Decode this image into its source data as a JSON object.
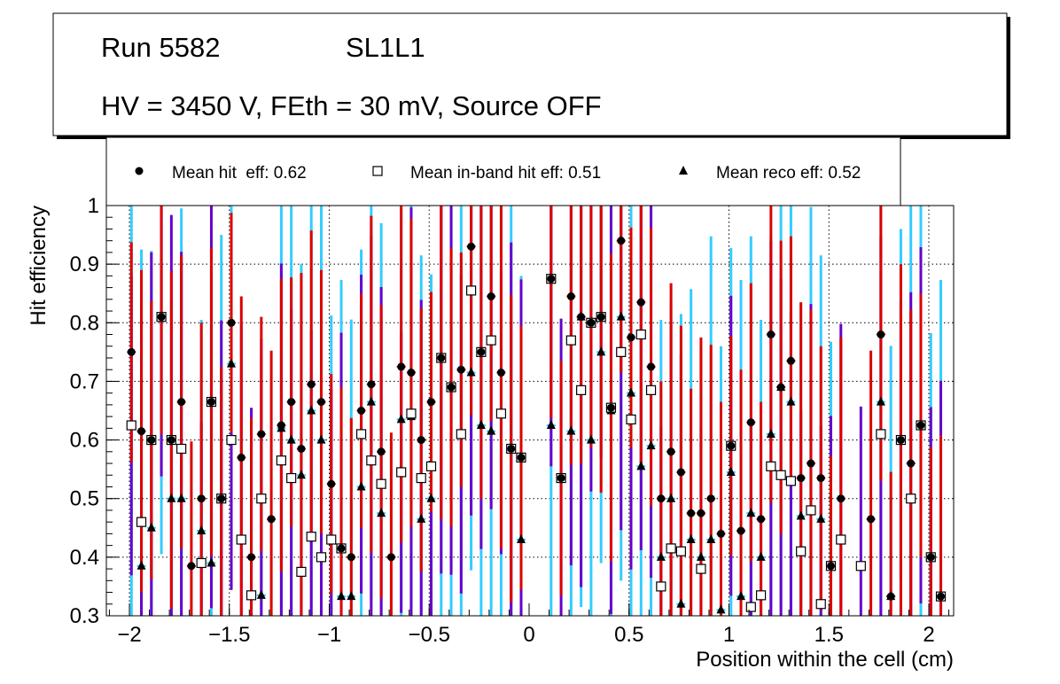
{
  "header": {
    "run": "Run 5582",
    "layer": "SL1L1",
    "conditions": "HV = 3450 V, FEth = 30 mV, Source OFF"
  },
  "chart_data": {
    "type": "scatter",
    "title": "",
    "xlabel": "Position within the cell (cm)",
    "ylabel": "Hit efficiency",
    "xlim": [
      -2.12,
      2.12
    ],
    "ylim": [
      0.3,
      1.0
    ],
    "xticks": [
      -2,
      -1.5,
      -1,
      -0.5,
      0,
      0.5,
      1,
      1.5,
      2
    ],
    "xtick_labels": [
      "−2",
      "−1.5",
      "−1",
      "−0.5",
      "0",
      "0.5",
      "1",
      "1.5",
      "2"
    ],
    "yticks": [
      0.3,
      0.4,
      0.5,
      0.6,
      0.7,
      0.8,
      0.9,
      1.0
    ],
    "ytick_labels": [
      "0.3",
      "0.4",
      "0.5",
      "0.6",
      "0.7",
      "0.8",
      "0.9",
      "1"
    ],
    "grid": true,
    "legend_position": "top",
    "x_start": -1.99,
    "bin_width": 0.05,
    "series": [
      {
        "name": "Mean hit  eff: 0.62",
        "marker": "circle",
        "error_color": "#dd0000",
        "typical_error": 0.25,
        "values": [
          0.75,
          0.615,
          0.6,
          0.81,
          0.6,
          0.665,
          0.385,
          0.5,
          0.665,
          0.5,
          0.8,
          0.57,
          0.4,
          0.61,
          0.465,
          0.625,
          0.665,
          0.585,
          0.695,
          0.665,
          0.525,
          0.415,
          0.4,
          0.65,
          0.695,
          0.58,
          0.4,
          0.725,
          0.715,
          0.6,
          0.665,
          0.74,
          0.69,
          0.72,
          0.93,
          0.75,
          0.845,
          0.715,
          0.585,
          0.57,
          null,
          null,
          0.875,
          0.535,
          0.845,
          0.81,
          0.8,
          0.81,
          0.655,
          0.94,
          0.775,
          0.835,
          0.725,
          0.5,
          0.58,
          0.545,
          0.475,
          0.475,
          0.5,
          0.44,
          0.59,
          0.445,
          0.63,
          0.465,
          0.78,
          0.69,
          0.735,
          0.535,
          0.56,
          0.535,
          0.385,
          0.5,
          null,
          null,
          0.465,
          0.78,
          0.333,
          0.6,
          0.56,
          0.625,
          0.4,
          0.333
        ]
      },
      {
        "name": "Mean in-band hit eff: 0.51",
        "marker": "open-square",
        "error_color": "#6600cc",
        "typical_error": 0.32,
        "values": [
          0.625,
          0.46,
          0.6,
          0.81,
          0.6,
          0.585,
          null,
          0.39,
          0.665,
          0.5,
          0.6,
          0.43,
          0.335,
          0.5,
          null,
          0.565,
          0.535,
          0.375,
          0.435,
          0.4,
          0.43,
          0.415,
          null,
          0.61,
          0.565,
          0.525,
          null,
          0.545,
          0.645,
          0.535,
          0.555,
          0.74,
          0.69,
          0.61,
          0.855,
          0.75,
          0.77,
          0.645,
          0.585,
          0.57,
          null,
          null,
          0.875,
          0.535,
          0.77,
          0.685,
          0.8,
          0.81,
          0.655,
          0.75,
          0.635,
          0.78,
          0.685,
          0.35,
          0.415,
          0.41,
          null,
          0.38,
          null,
          null,
          0.59,
          null,
          0.315,
          0.335,
          0.555,
          0.54,
          0.53,
          0.41,
          0.48,
          0.32,
          0.385,
          0.43,
          null,
          0.385,
          null,
          0.61,
          null,
          0.6,
          0.5,
          0.625,
          0.4,
          0.333
        ]
      },
      {
        "name": "Mean reco eff: 0.52",
        "marker": "triangle",
        "error_color": "#33ccff",
        "typical_error": 0.45,
        "values": [
          0.625,
          0.385,
          0.45,
          0.81,
          0.5,
          0.5,
          null,
          0.445,
          0.39,
          0.5,
          0.73,
          null,
          null,
          0.335,
          null,
          0.62,
          0.6,
          0.54,
          0.65,
          0.6,
          0.43,
          0.333,
          0.333,
          0.52,
          0.665,
          0.475,
          null,
          0.635,
          0.64,
          0.465,
          0.5,
          0.74,
          0.69,
          0.61,
          0.715,
          0.625,
          0.615,
          0.645,
          0.585,
          0.43,
          null,
          null,
          0.625,
          null,
          0.615,
          0.81,
          0.6,
          0.75,
          0.65,
          0.81,
          0.68,
          0.555,
          0.59,
          0.4,
          0.5,
          0.32,
          0.43,
          0.4,
          0.43,
          0.31,
          0.545,
          0.333,
          0.475,
          0.4,
          0.61,
          0.69,
          0.665,
          0.47,
          0.48,
          0.465,
          0.385,
          null,
          null,
          null,
          null,
          0.665,
          0.333,
          0.6,
          0.5,
          0.625,
          0.4,
          0.333
        ]
      }
    ]
  }
}
